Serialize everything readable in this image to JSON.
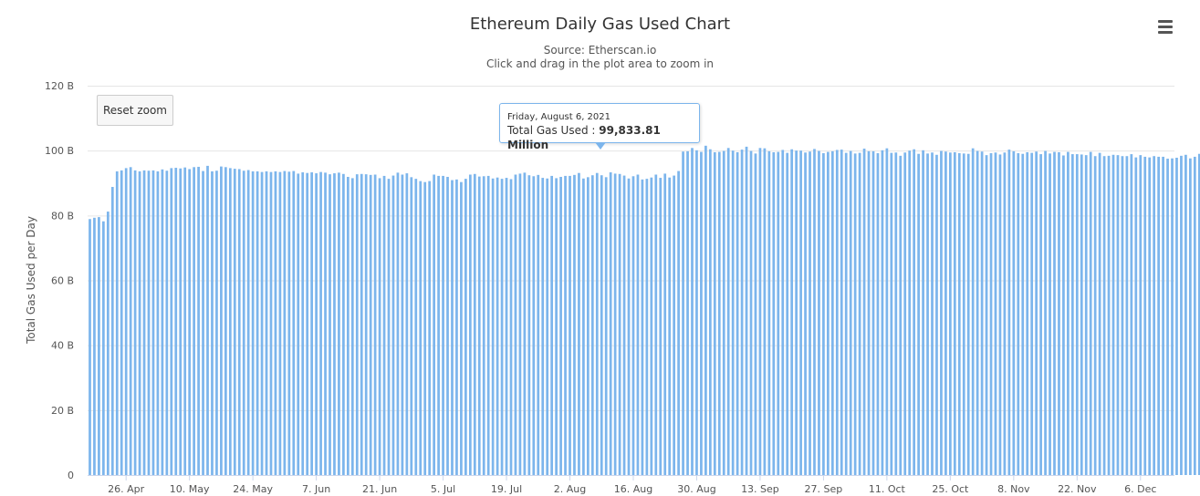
{
  "chart_data": {
    "type": "bar",
    "title": "Ethereum Daily Gas Used Chart",
    "subtitle_lines": [
      "Source: Etherscan.io",
      "Click and drag in the plot area to zoom in"
    ],
    "ylabel": "Total Gas Used per Day",
    "ylim": [
      0,
      120
    ],
    "y_unit": "B",
    "yticks": [
      "0",
      "20 B",
      "40 B",
      "60 B",
      "80 B",
      "100 B",
      "120 B"
    ],
    "xticks": [
      "26. Apr",
      "10. May",
      "24. May",
      "7. Jun",
      "21. Jun",
      "5. Jul",
      "19. Jul",
      "2. Aug",
      "16. Aug",
      "30. Aug",
      "13. Sep",
      "27. Sep",
      "11. Oct",
      "25. Oct",
      "8. Nov",
      "22. Nov",
      "6. Dec"
    ],
    "x_start": "2021-04-18",
    "x_end": "2021-12-13",
    "color": "#7cb5ec",
    "grid": true,
    "legend": "none",
    "values": [
      78.9,
      79.3,
      79.5,
      78.2,
      81.2,
      88.8,
      93.6,
      93.9,
      94.6,
      94.9,
      93.9,
      93.6,
      93.9,
      93.8,
      93.9,
      93.6,
      94.2,
      93.8,
      94.6,
      94.7,
      94.5,
      94.8,
      94.3,
      94.9,
      95.0,
      93.7,
      95.3,
      93.6,
      93.8,
      95.1,
      94.9,
      94.6,
      94.4,
      94.3,
      93.8,
      94.0,
      93.6,
      93.6,
      93.4,
      93.6,
      93.4,
      93.6,
      93.4,
      93.7,
      93.5,
      93.7,
      92.9,
      93.3,
      93.1,
      93.3,
      93.0,
      93.4,
      93.2,
      92.7,
      93.0,
      93.2,
      92.8,
      91.9,
      91.5,
      92.7,
      92.8,
      92.7,
      92.5,
      92.6,
      91.5,
      92.2,
      91.3,
      92.3,
      93.2,
      92.6,
      93.0,
      91.8,
      91.3,
      90.6,
      90.3,
      90.6,
      92.6,
      92.2,
      92.2,
      91.9,
      90.9,
      91.1,
      90.3,
      91.3,
      92.6,
      92.8,
      92.0,
      92.1,
      92.2,
      91.4,
      91.7,
      91.3,
      91.6,
      91.2,
      92.6,
      92.9,
      93.2,
      92.4,
      92.1,
      92.5,
      91.6,
      91.4,
      92.2,
      91.5,
      91.9,
      92.2,
      92.2,
      92.5,
      93.1,
      91.4,
      91.8,
      92.4,
      93.1,
      92.4,
      91.8,
      93.3,
      92.9,
      92.8,
      92.3,
      91.4,
      92.1,
      92.6,
      91.1,
      91.3,
      91.7,
      92.6,
      91.6,
      92.9,
      91.7,
      92.3,
      93.7,
      99.7,
      99.8,
      100.8,
      100.1,
      99.6,
      101.5,
      100.4,
      99.5,
      99.6,
      99.9,
      100.8,
      100.0,
      99.5,
      100.3,
      101.2,
      99.9,
      99.1,
      100.8,
      100.7,
      99.8,
      99.5,
      99.6,
      100.2,
      99.3,
      100.4,
      100.0,
      100.0,
      99.4,
      99.7,
      100.5,
      99.9,
      99.2,
      99.6,
      99.8,
      100.2,
      100.3,
      99.3,
      99.9,
      99.1,
      99.3,
      100.6,
      99.8,
      99.8,
      99.2,
      100.1,
      100.7,
      99.3,
      99.4,
      98.4,
      99.4,
      100.0,
      100.4,
      99.0,
      100.1,
      99.1,
      99.4,
      98.7,
      99.9,
      99.7,
      99.4,
      99.5,
      99.2,
      99.1,
      99.0,
      100.7,
      99.9,
      99.7,
      98.6,
      99.2,
      99.4,
      98.8,
      99.4,
      100.3,
      99.8,
      99.2,
      99.0,
      99.5,
      99.3,
      99.7,
      98.9,
      99.9,
      99.1,
      99.6,
      99.5,
      98.5,
      99.6,
      98.9,
      98.9,
      98.8,
      98.6,
      99.6,
      98.3,
      99.3,
      98.3,
      98.4,
      98.7,
      98.6,
      98.3,
      98.3,
      98.9,
      97.9,
      98.6,
      98.1,
      97.9,
      98.3,
      98.1,
      98.1,
      97.5,
      97.6,
      97.8,
      98.4,
      98.7,
      97.6,
      98.1,
      99.0,
      97.4,
      98.1,
      97.4,
      99.2,
      98.0,
      97.4,
      98.0,
      98.4,
      98.0,
      98.1,
      98.2,
      98.9,
      98.1,
      98.2,
      97.9,
      98.4,
      97.3,
      98.1,
      97.9,
      98.0,
      98.4,
      97.6,
      98.9,
      98.8,
      97.3,
      97.6,
      98.3,
      97.6,
      98.6,
      98.5,
      98.0,
      98.5,
      97.4,
      97.6,
      99.1,
      97.8,
      98.3,
      98.4,
      97.8,
      97.6,
      98.8,
      98.0,
      98.3,
      98.4,
      98.8,
      98.3,
      97.9,
      97.8,
      97.0,
      97.3,
      97.9,
      97.1,
      96.9,
      97.2,
      98.0,
      97.8,
      96.9,
      96.4,
      96.9,
      97.2,
      96.5,
      97.2,
      97.8,
      97.4,
      96.8,
      96.9,
      96.7,
      96.4,
      98.4,
      96.3,
      95.9,
      97.2,
      96.2,
      96.0,
      96.4,
      95.7,
      96.3,
      95.6,
      96.0,
      96.3,
      96.3,
      96.1,
      95.9,
      96.5,
      96.6,
      96.1,
      95.7,
      96.6,
      98.9
    ]
  },
  "tooltip": {
    "date": "Friday, August 6, 2021",
    "series": "Total Gas Used",
    "separator": " : ",
    "value": "99,833.81 Million"
  },
  "controls": {
    "reset_zoom_label": "Reset zoom",
    "menu_icon": "hamburger-menu-icon"
  }
}
